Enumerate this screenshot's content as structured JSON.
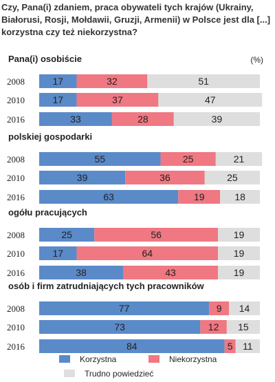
{
  "question": "Czy, Pana(i) zdaniem, praca obywateli tych krajów (Ukrainy, Białorusi, Rosji, Mołdawii, Gruzji, Armenii) w Polsce jest dla [...] korzystna czy też niekorzystna?",
  "unit": "(%)",
  "colors": {
    "korzystna": "#5b8ac8",
    "niekorzystna": "#ef7882",
    "trudno": "#dedede"
  },
  "chart_data": {
    "type": "bar",
    "orientation": "horizontal",
    "stacked": true,
    "xlim": [
      0,
      100
    ],
    "categories": [
      "2008",
      "2010",
      "2016"
    ],
    "series_names": [
      "Korzystna",
      "Niekorzystna",
      "Trudno powiedzieć"
    ],
    "legend": [
      "Korzystna",
      "Niekorzystna",
      "Trudno powiedzieć"
    ],
    "legend_position": "bottom",
    "groups": [
      {
        "title": "Pana(i) osobiście",
        "rows": [
          {
            "year": "2008",
            "values": [
              17,
              32,
              51
            ]
          },
          {
            "year": "2010",
            "values": [
              17,
              37,
              47
            ]
          },
          {
            "year": "2016",
            "values": [
              33,
              28,
              39
            ]
          }
        ]
      },
      {
        "title": "polskiej gospodarki",
        "rows": [
          {
            "year": "2008",
            "values": [
              55,
              25,
              21
            ]
          },
          {
            "year": "2010",
            "values": [
              39,
              36,
              25
            ]
          },
          {
            "year": "2016",
            "values": [
              63,
              19,
              18
            ]
          }
        ]
      },
      {
        "title": "ogółu pracujących",
        "rows": [
          {
            "year": "2008",
            "values": [
              25,
              56,
              19
            ]
          },
          {
            "year": "2010",
            "values": [
              17,
              64,
              19
            ]
          },
          {
            "year": "2016",
            "values": [
              38,
              43,
              19
            ]
          }
        ]
      },
      {
        "title": "osób i firm zatrudniających tych pracowników",
        "rows": [
          {
            "year": "2008",
            "values": [
              77,
              9,
              14
            ]
          },
          {
            "year": "2010",
            "values": [
              73,
              12,
              15
            ]
          },
          {
            "year": "2016",
            "values": [
              84,
              5,
              11
            ]
          }
        ]
      }
    ]
  }
}
